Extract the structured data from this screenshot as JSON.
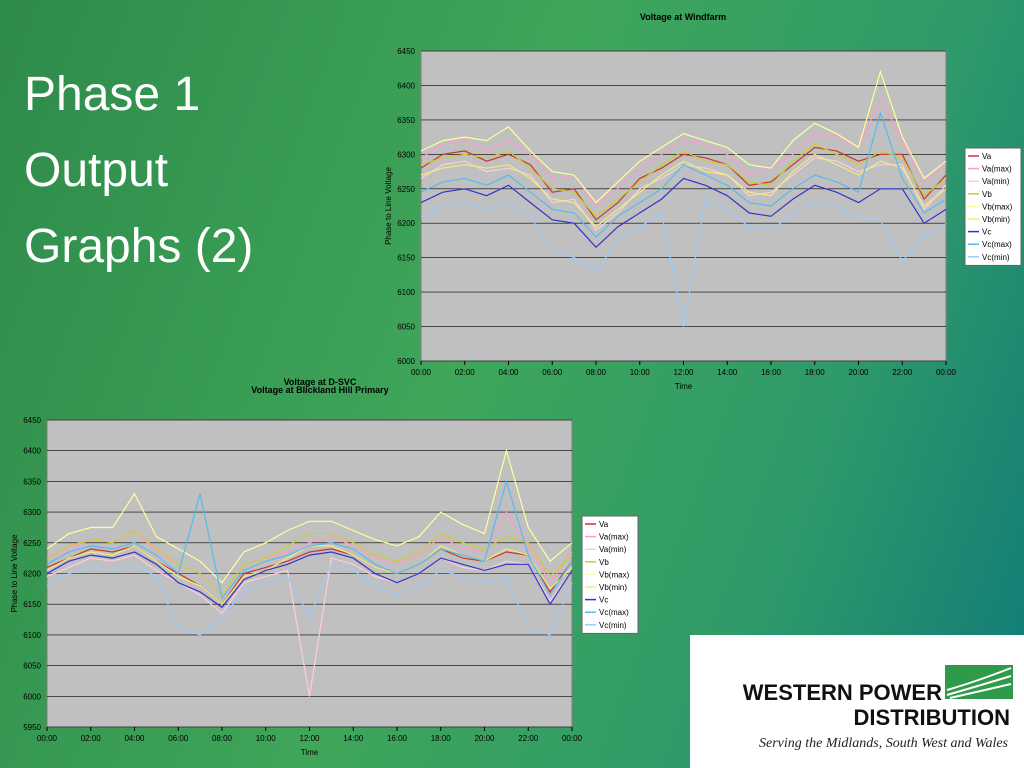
{
  "slide": {
    "title_lines": [
      "Phase 1",
      "Output",
      "Graphs (2)"
    ]
  },
  "logo": {
    "line1": "WESTERN POWER",
    "line2": "DISTRIBUTION",
    "tagline": "Serving the Midlands, South West and Wales"
  },
  "chart_data": [
    {
      "type": "line",
      "title": "Voltage at Windfarm",
      "x_label": "Time",
      "y_label": "Phase to Line Voltage",
      "x": [
        0,
        1,
        2,
        3,
        4,
        5,
        6,
        7,
        8,
        9,
        10,
        11,
        12,
        13,
        14,
        15,
        16,
        17,
        18,
        19,
        20,
        21,
        22,
        23,
        24
      ],
      "xlim": [
        0,
        24
      ],
      "xticks": [
        {
          "value": 0,
          "label": "00:00"
        },
        {
          "value": 2,
          "label": "02:00"
        },
        {
          "value": 4,
          "label": "04:00"
        },
        {
          "value": 6,
          "label": "06:00"
        },
        {
          "value": 8,
          "label": "08:00"
        },
        {
          "value": 10,
          "label": "10:00"
        },
        {
          "value": 12,
          "label": "12:00"
        },
        {
          "value": 14,
          "label": "14:00"
        },
        {
          "value": 16,
          "label": "16:00"
        },
        {
          "value": 18,
          "label": "18:00"
        },
        {
          "value": 20,
          "label": "20:00"
        },
        {
          "value": 22,
          "label": "22:00"
        },
        {
          "value": 24,
          "label": "00:00"
        }
      ],
      "ylim": [
        6000,
        6450
      ],
      "yticks": [
        6000,
        6050,
        6100,
        6150,
        6200,
        6250,
        6300,
        6350,
        6400,
        6450
      ],
      "grid": true,
      "series": [
        {
          "name": "Va",
          "color": "#cc3333",
          "values": [
            6280,
            6300,
            6305,
            6290,
            6300,
            6285,
            6245,
            6250,
            6205,
            6230,
            6265,
            6280,
            6300,
            6295,
            6285,
            6255,
            6260,
            6285,
            6310,
            6305,
            6290,
            6300,
            6300,
            6235,
            6270
          ]
        },
        {
          "name": "Va(max)",
          "color": "#ff99cc",
          "values": [
            6295,
            6315,
            6320,
            6305,
            6320,
            6300,
            6265,
            6270,
            6225,
            6250,
            6280,
            6300,
            6320,
            6315,
            6300,
            6270,
            6280,
            6300,
            6330,
            6325,
            6310,
            6380,
            6320,
            6260,
            6285
          ]
        },
        {
          "name": "Va(min)",
          "color": "#ffccdd",
          "values": [
            6265,
            6285,
            6290,
            6275,
            6280,
            6270,
            6230,
            6235,
            6190,
            6215,
            6250,
            6265,
            6285,
            6280,
            6270,
            6240,
            6245,
            6270,
            6295,
            6290,
            6275,
            6285,
            6285,
            6220,
            6255
          ]
        },
        {
          "name": "Vb",
          "color": "#cccc33",
          "values": [
            6285,
            6295,
            6300,
            6295,
            6305,
            6280,
            6250,
            6245,
            6210,
            6235,
            6260,
            6285,
            6305,
            6290,
            6285,
            6260,
            6255,
            6290,
            6315,
            6300,
            6285,
            6305,
            6295,
            6240,
            6265
          ]
        },
        {
          "name": "Vb(max)",
          "color": "#ffff99",
          "values": [
            6305,
            6320,
            6325,
            6320,
            6340,
            6305,
            6275,
            6270,
            6230,
            6260,
            6290,
            6310,
            6330,
            6320,
            6310,
            6285,
            6280,
            6320,
            6345,
            6330,
            6310,
            6420,
            6325,
            6265,
            6290
          ]
        },
        {
          "name": "Vb(min)",
          "color": "#eeee77",
          "values": [
            6270,
            6280,
            6285,
            6280,
            6285,
            6265,
            6235,
            6230,
            6195,
            6220,
            6245,
            6270,
            6290,
            6275,
            6270,
            6245,
            6240,
            6275,
            6300,
            6285,
            6270,
            6290,
            6280,
            6225,
            6250
          ]
        },
        {
          "name": "Vc",
          "color": "#3333cc",
          "values": [
            6230,
            6245,
            6250,
            6240,
            6255,
            6230,
            6205,
            6200,
            6165,
            6195,
            6215,
            6235,
            6265,
            6255,
            6240,
            6215,
            6210,
            6235,
            6255,
            6245,
            6230,
            6250,
            6250,
            6200,
            6220
          ]
        },
        {
          "name": "Vc(max)",
          "color": "#55bbee",
          "values": [
            6245,
            6260,
            6265,
            6255,
            6270,
            6245,
            6220,
            6215,
            6180,
            6210,
            6230,
            6250,
            6285,
            6270,
            6255,
            6230,
            6225,
            6250,
            6270,
            6260,
            6245,
            6360,
            6265,
            6215,
            6235
          ]
        },
        {
          "name": "Vc(min)",
          "color": "#99ccff",
          "values": [
            6210,
            6225,
            6230,
            6220,
            6230,
            6210,
            6160,
            6150,
            6130,
            6175,
            6195,
            6215,
            6050,
            6235,
            6220,
            6195,
            6190,
            6215,
            6230,
            6225,
            6210,
            6205,
            6145,
            6180,
            6200
          ]
        }
      ]
    },
    {
      "type": "line",
      "title": "Voltage at Blickland Hill Primary",
      "overlay_title": "Voltage at D-SVC",
      "x_label": "Time",
      "y_label": "Phase to Line Voltage",
      "x": [
        0,
        1,
        2,
        3,
        4,
        5,
        6,
        7,
        8,
        9,
        10,
        11,
        12,
        13,
        14,
        15,
        16,
        17,
        18,
        19,
        20,
        21,
        22,
        23,
        24
      ],
      "xlim": [
        0,
        24
      ],
      "xticks": [
        {
          "value": 0,
          "label": "00:00"
        },
        {
          "value": 2,
          "label": "02:00"
        },
        {
          "value": 4,
          "label": "04:00"
        },
        {
          "value": 6,
          "label": "06:00"
        },
        {
          "value": 8,
          "label": "08:00"
        },
        {
          "value": 10,
          "label": "10:00"
        },
        {
          "value": 12,
          "label": "12:00"
        },
        {
          "value": 14,
          "label": "14:00"
        },
        {
          "value": 16,
          "label": "16:00"
        },
        {
          "value": 18,
          "label": "18:00"
        },
        {
          "value": 20,
          "label": "20:00"
        },
        {
          "value": 22,
          "label": "22:00"
        },
        {
          "value": 24,
          "label": "00:00"
        }
      ],
      "ylim": [
        5950,
        6450
      ],
      "yticks": [
        5950,
        6000,
        6050,
        6100,
        6150,
        6200,
        6250,
        6300,
        6350,
        6400,
        6450
      ],
      "grid": true,
      "series": [
        {
          "name": "Va",
          "color": "#cc3333",
          "values": [
            6210,
            6225,
            6240,
            6235,
            6245,
            6220,
            6200,
            6180,
            6150,
            6200,
            6210,
            6220,
            6235,
            6240,
            6230,
            6210,
            6200,
            6215,
            6240,
            6225,
            6220,
            6235,
            6230,
            6170,
            6220
          ]
        },
        {
          "name": "Va(max)",
          "color": "#ff99cc",
          "values": [
            6225,
            6240,
            6255,
            6250,
            6270,
            6235,
            6215,
            6200,
            6165,
            6215,
            6225,
            6235,
            6250,
            6260,
            6245,
            6225,
            6215,
            6230,
            6260,
            6240,
            6235,
            6300,
            6245,
            6185,
            6235
          ]
        },
        {
          "name": "Va(min)",
          "color": "#ffccdd",
          "values": [
            6195,
            6210,
            6225,
            6220,
            6230,
            6205,
            6185,
            6165,
            6135,
            6185,
            6195,
            6205,
            6000,
            6225,
            6215,
            6195,
            6185,
            6200,
            6225,
            6210,
            6205,
            6220,
            6215,
            6155,
            6205
          ]
        },
        {
          "name": "Vb",
          "color": "#cccc33",
          "values": [
            6225,
            6245,
            6255,
            6250,
            6270,
            6240,
            6215,
            6200,
            6165,
            6215,
            6225,
            6245,
            6265,
            6265,
            6250,
            6230,
            6220,
            6235,
            6265,
            6250,
            6240,
            6260,
            6250,
            6195,
            6230
          ]
        },
        {
          "name": "Vb(max)",
          "color": "#ffff99",
          "values": [
            6240,
            6265,
            6275,
            6275,
            6330,
            6260,
            6240,
            6220,
            6185,
            6235,
            6250,
            6270,
            6285,
            6285,
            6270,
            6255,
            6245,
            6260,
            6300,
            6280,
            6265,
            6400,
            6275,
            6220,
            6250
          ]
        },
        {
          "name": "Vb(min)",
          "color": "#eeee77",
          "values": [
            6205,
            6225,
            6235,
            6230,
            6245,
            6220,
            6195,
            6180,
            6150,
            6195,
            6205,
            6225,
            6245,
            6245,
            6230,
            6210,
            6200,
            6215,
            6245,
            6230,
            6220,
            6240,
            6230,
            6175,
            6210
          ]
        },
        {
          "name": "Vc",
          "color": "#3333cc",
          "values": [
            6200,
            6220,
            6230,
            6225,
            6235,
            6215,
            6185,
            6170,
            6145,
            6190,
            6205,
            6215,
            6230,
            6235,
            6225,
            6200,
            6185,
            6200,
            6225,
            6215,
            6205,
            6215,
            6215,
            6150,
            6205
          ]
        },
        {
          "name": "Vc(max)",
          "color": "#55bbee",
          "values": [
            6215,
            6235,
            6245,
            6240,
            6250,
            6230,
            6200,
            6330,
            6160,
            6205,
            6220,
            6230,
            6245,
            6250,
            6240,
            6215,
            6200,
            6215,
            6240,
            6230,
            6220,
            6350,
            6230,
            6165,
            6220
          ]
        },
        {
          "name": "Vc(min)",
          "color": "#99ccff",
          "values": [
            6180,
            6200,
            6210,
            6205,
            6215,
            6195,
            6110,
            6100,
            6130,
            6170,
            6185,
            6195,
            6130,
            6215,
            6205,
            6180,
            6165,
            6180,
            6205,
            6195,
            6185,
            6195,
            6110,
            6100,
            6185
          ]
        }
      ]
    }
  ]
}
